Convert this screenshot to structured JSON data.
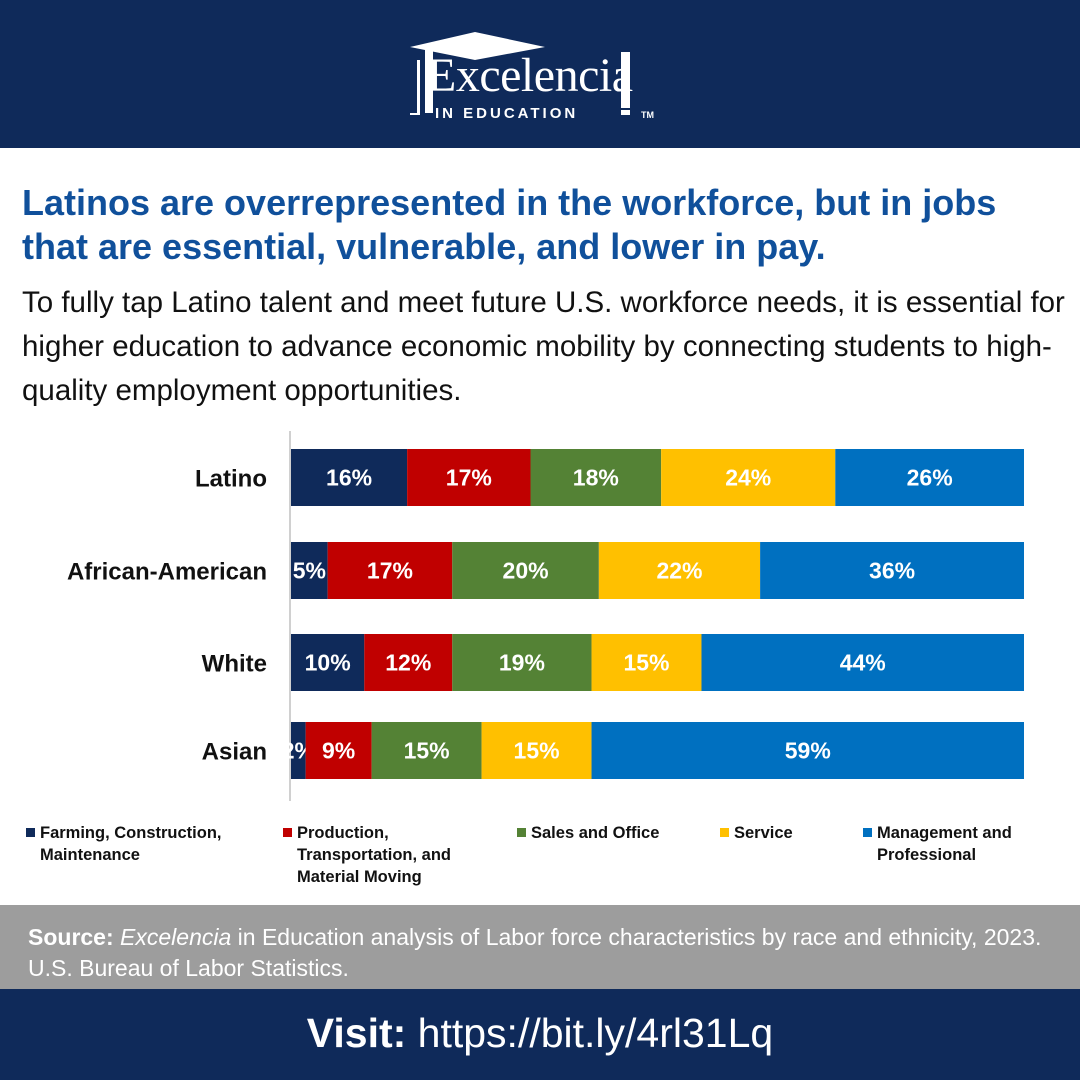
{
  "brand": {
    "logo_main": "Excelencia",
    "logo_sub": "IN EDUCATION",
    "logo_tm": "TM"
  },
  "headline": "Latinos are overrepresented in the workforce, but in jobs that are essential, vulnerable, and lower in pay.",
  "body": "To fully tap Latino talent and meet future U.S. workforce needs, it is essential for higher education to advance economic mobility by connecting students to high-quality employment opportunities.",
  "chart_data": {
    "type": "bar",
    "orientation": "horizontal",
    "stacked": true,
    "categories": [
      "Latino",
      "African-American",
      "White",
      "Asian"
    ],
    "series": [
      {
        "name": "Farming, Construction, Maintenance",
        "color": "#0f2a5a",
        "values": [
          16,
          5,
          10,
          2
        ]
      },
      {
        "name": "Production, Transportation, and Material Moving",
        "color": "#c00000",
        "values": [
          17,
          17,
          12,
          9
        ]
      },
      {
        "name": "Sales and Office",
        "color": "#548235",
        "values": [
          18,
          20,
          19,
          15
        ]
      },
      {
        "name": "Service",
        "color": "#ffc000",
        "values": [
          24,
          22,
          15,
          15
        ]
      },
      {
        "name": "Management and Professional",
        "color": "#0070c0",
        "values": [
          26,
          36,
          44,
          59
        ]
      }
    ],
    "value_suffix": "%",
    "legend_position": "bottom",
    "grid": false
  },
  "source": {
    "label": "Source:",
    "italic": "Excelencia",
    "text": " in Education analysis of Labor force characteristics by race and ethnicity, 2023. U.S. Bureau of Labor Statistics."
  },
  "footer": {
    "label": "Visit:",
    "url": " https://bit.ly/4rl31Lq"
  }
}
